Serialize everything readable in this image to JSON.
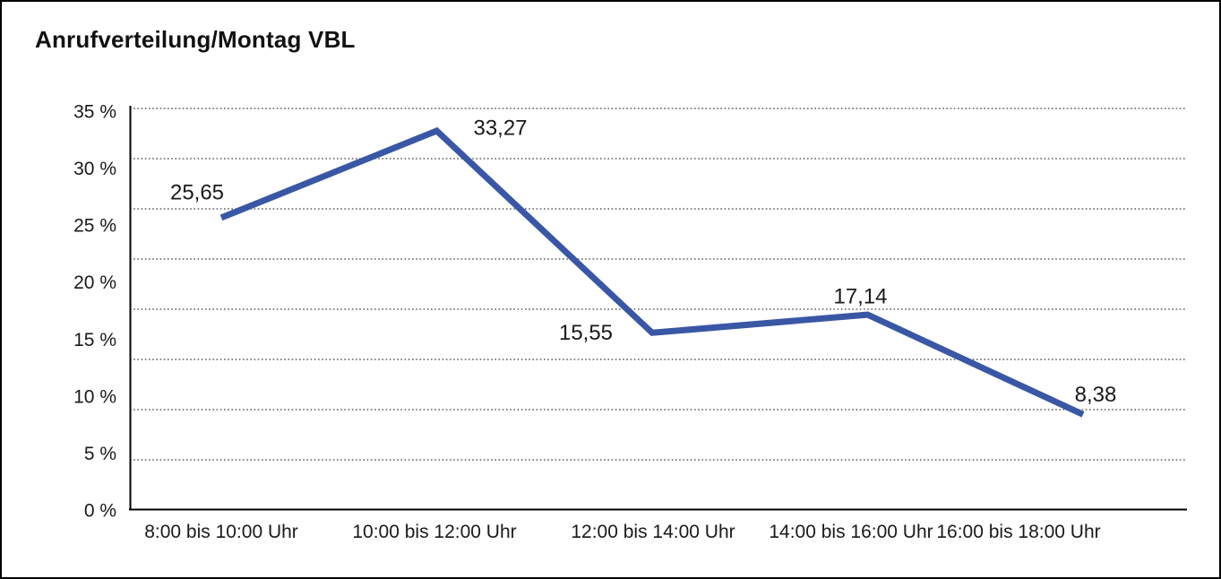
{
  "window": {
    "background": "#ffffff",
    "border_color": "#000000"
  },
  "chart_data": {
    "type": "line",
    "title": "Anrufverteilung/Montag VBL",
    "categories": [
      "8:00 bis 10:00 Uhr",
      "10:00 bis 12:00 Uhr",
      "12:00 bis 14:00 Uhr",
      "14:00 bis 16:00 Uhr",
      "16:00 bis 18:00 Uhr"
    ],
    "values": [
      25.65,
      33.27,
      15.55,
      17.14,
      8.38
    ],
    "value_labels": [
      "25,65",
      "33,27",
      "15,55",
      "17,14",
      "8,38"
    ],
    "ytick_labels": [
      "35 %",
      "30 %",
      "25 %",
      "20 %",
      "15 %",
      "10 %",
      "5 %",
      "0 %"
    ],
    "ylim": [
      0,
      35
    ],
    "ytick_step": 5,
    "xlabel": "",
    "ylabel": "",
    "legend": "none",
    "grid": {
      "horizontal_dotted_lines": 8,
      "style": "dotted"
    },
    "line_color": "#3a57a5",
    "axis_color": "#000000",
    "grid_color": "#3c3c3c",
    "text_color": "#1a1a1a"
  }
}
